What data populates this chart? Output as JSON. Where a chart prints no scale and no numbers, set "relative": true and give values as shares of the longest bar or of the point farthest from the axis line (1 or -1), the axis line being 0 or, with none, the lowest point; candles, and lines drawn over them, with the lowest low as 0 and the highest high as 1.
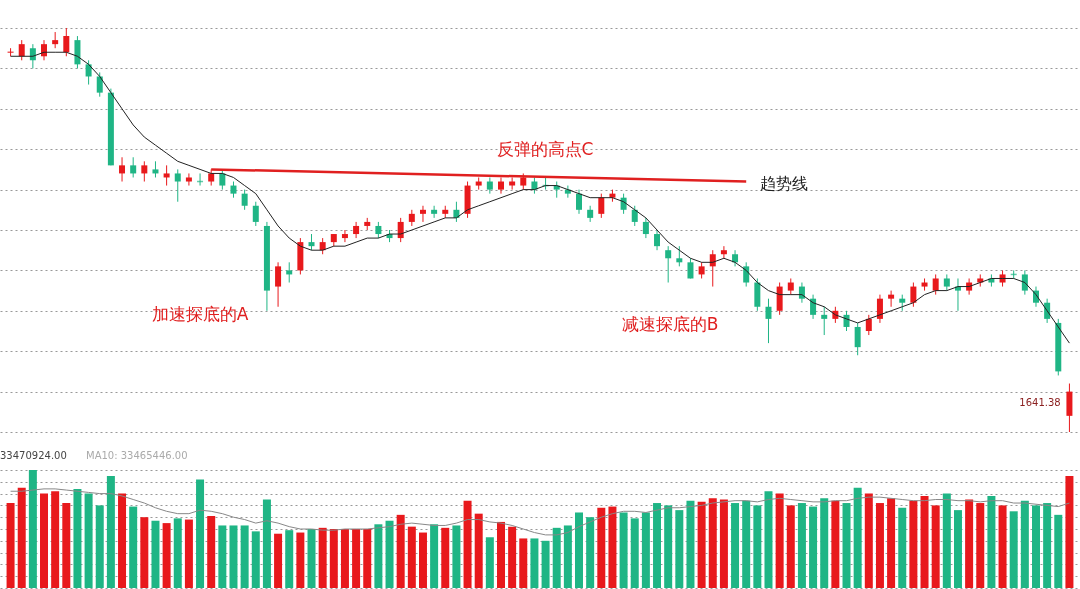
{
  "chart_data": [
    {
      "type": "candlestick",
      "relative": true,
      "grid": "y",
      "categories": [
        null,
        null,
        null,
        null,
        null,
        null,
        null,
        null,
        null,
        null,
        null,
        null,
        null,
        null,
        null,
        null,
        null,
        null,
        null,
        null,
        null,
        null,
        null,
        null,
        null,
        null,
        null,
        null,
        null,
        null,
        null,
        null,
        null,
        null,
        null,
        null,
        null,
        null,
        null,
        null,
        null,
        null,
        null,
        null,
        null,
        null,
        null,
        null,
        null,
        null,
        null,
        null,
        null,
        null,
        null,
        null,
        null,
        null,
        null,
        null,
        null,
        null,
        null,
        null,
        null,
        null,
        null,
        null,
        null,
        null,
        null,
        null,
        null,
        null,
        null,
        null,
        null,
        null,
        null,
        null,
        null,
        null,
        null,
        null,
        null,
        null,
        null,
        null,
        null,
        null,
        null,
        null,
        null,
        null,
        null,
        null
      ],
      "ohlc": [
        [
          0.94,
          0.95,
          0.93,
          0.94
        ],
        [
          0.93,
          0.97,
          0.92,
          0.96
        ],
        [
          0.95,
          0.96,
          0.9,
          0.92
        ],
        [
          0.93,
          0.97,
          0.92,
          0.96
        ],
        [
          0.96,
          0.99,
          0.95,
          0.97
        ],
        [
          0.94,
          1.0,
          0.93,
          0.98
        ],
        [
          0.97,
          0.98,
          0.9,
          0.91
        ],
        [
          0.91,
          0.92,
          0.86,
          0.88
        ],
        [
          0.88,
          0.89,
          0.83,
          0.84
        ],
        [
          0.84,
          0.85,
          0.66,
          0.66
        ],
        [
          0.64,
          0.68,
          0.62,
          0.66
        ],
        [
          0.66,
          0.68,
          0.63,
          0.64
        ],
        [
          0.64,
          0.67,
          0.62,
          0.66
        ],
        [
          0.65,
          0.67,
          0.63,
          0.64
        ],
        [
          0.63,
          0.66,
          0.61,
          0.64
        ],
        [
          0.64,
          0.65,
          0.57,
          0.62
        ],
        [
          0.62,
          0.64,
          0.61,
          0.63
        ],
        [
          0.62,
          0.64,
          0.61,
          0.62
        ],
        [
          0.62,
          0.65,
          0.61,
          0.64
        ],
        [
          0.64,
          0.65,
          0.6,
          0.61
        ],
        [
          0.61,
          0.62,
          0.58,
          0.59
        ],
        [
          0.59,
          0.6,
          0.55,
          0.56
        ],
        [
          0.56,
          0.57,
          0.51,
          0.52
        ],
        [
          0.51,
          0.52,
          0.3,
          0.35
        ],
        [
          0.36,
          0.42,
          0.31,
          0.41
        ],
        [
          0.4,
          0.42,
          0.37,
          0.39
        ],
        [
          0.4,
          0.48,
          0.39,
          0.47
        ],
        [
          0.47,
          0.49,
          0.45,
          0.46
        ],
        [
          0.45,
          0.48,
          0.44,
          0.47
        ],
        [
          0.47,
          0.49,
          0.46,
          0.49
        ],
        [
          0.48,
          0.5,
          0.47,
          0.49
        ],
        [
          0.49,
          0.52,
          0.48,
          0.51
        ],
        [
          0.51,
          0.53,
          0.5,
          0.52
        ],
        [
          0.51,
          0.52,
          0.48,
          0.49
        ],
        [
          0.49,
          0.5,
          0.47,
          0.48
        ],
        [
          0.48,
          0.53,
          0.47,
          0.52
        ],
        [
          0.52,
          0.55,
          0.51,
          0.54
        ],
        [
          0.54,
          0.56,
          0.52,
          0.55
        ],
        [
          0.55,
          0.56,
          0.53,
          0.54
        ],
        [
          0.54,
          0.56,
          0.53,
          0.55
        ],
        [
          0.55,
          0.57,
          0.52,
          0.53
        ],
        [
          0.54,
          0.62,
          0.53,
          0.61
        ],
        [
          0.61,
          0.63,
          0.6,
          0.62
        ],
        [
          0.62,
          0.63,
          0.59,
          0.6
        ],
        [
          0.6,
          0.63,
          0.59,
          0.62
        ],
        [
          0.61,
          0.63,
          0.6,
          0.62
        ],
        [
          0.61,
          0.64,
          0.6,
          0.63
        ],
        [
          0.62,
          0.63,
          0.59,
          0.6
        ],
        [
          0.61,
          0.63,
          0.6,
          0.61
        ],
        [
          0.61,
          0.62,
          0.58,
          0.6
        ],
        [
          0.6,
          0.61,
          0.58,
          0.59
        ],
        [
          0.59,
          0.6,
          0.54,
          0.55
        ],
        [
          0.55,
          0.56,
          0.52,
          0.53
        ],
        [
          0.54,
          0.59,
          0.53,
          0.58
        ],
        [
          0.58,
          0.6,
          0.57,
          0.59
        ],
        [
          0.58,
          0.59,
          0.54,
          0.55
        ],
        [
          0.55,
          0.56,
          0.51,
          0.52
        ],
        [
          0.52,
          0.53,
          0.48,
          0.49
        ],
        [
          0.49,
          0.5,
          0.45,
          0.46
        ],
        [
          0.45,
          0.46,
          0.37,
          0.43
        ],
        [
          0.43,
          0.46,
          0.41,
          0.42
        ],
        [
          0.42,
          0.43,
          0.38,
          0.38
        ],
        [
          0.39,
          0.42,
          0.38,
          0.41
        ],
        [
          0.41,
          0.45,
          0.36,
          0.44
        ],
        [
          0.44,
          0.46,
          0.43,
          0.45
        ],
        [
          0.44,
          0.45,
          0.41,
          0.42
        ],
        [
          0.41,
          0.42,
          0.36,
          0.37
        ],
        [
          0.37,
          0.38,
          0.3,
          0.31
        ],
        [
          0.31,
          0.33,
          0.22,
          0.28
        ],
        [
          0.3,
          0.37,
          0.29,
          0.36
        ],
        [
          0.35,
          0.38,
          0.34,
          0.37
        ],
        [
          0.36,
          0.37,
          0.32,
          0.33
        ],
        [
          0.33,
          0.34,
          0.28,
          0.29
        ],
        [
          0.29,
          0.31,
          0.24,
          0.28
        ],
        [
          0.28,
          0.31,
          0.27,
          0.3
        ],
        [
          0.29,
          0.3,
          0.25,
          0.26
        ],
        [
          0.26,
          0.27,
          0.19,
          0.21
        ],
        [
          0.25,
          0.29,
          0.24,
          0.28
        ],
        [
          0.28,
          0.34,
          0.27,
          0.33
        ],
        [
          0.33,
          0.35,
          0.31,
          0.34
        ],
        [
          0.33,
          0.34,
          0.3,
          0.32
        ],
        [
          0.32,
          0.37,
          0.31,
          0.36
        ],
        [
          0.36,
          0.38,
          0.35,
          0.37
        ],
        [
          0.35,
          0.39,
          0.34,
          0.38
        ],
        [
          0.38,
          0.39,
          0.35,
          0.36
        ],
        [
          0.36,
          0.38,
          0.3,
          0.35
        ],
        [
          0.35,
          0.38,
          0.34,
          0.37
        ],
        [
          0.37,
          0.39,
          0.36,
          0.38
        ],
        [
          0.38,
          0.39,
          0.36,
          0.37
        ],
        [
          0.37,
          0.4,
          0.36,
          0.39
        ],
        [
          0.39,
          0.4,
          0.38,
          0.39
        ],
        [
          0.39,
          0.4,
          0.34,
          0.35
        ],
        [
          0.35,
          0.36,
          0.31,
          0.32
        ],
        [
          0.32,
          0.33,
          0.27,
          0.28
        ],
        [
          0.27,
          0.28,
          0.14,
          0.15
        ],
        [
          0.04,
          0.12,
          0.0,
          0.1
        ]
      ],
      "colors": [
        "#e8191c",
        "#e8191c",
        "#1fb585",
        "#e8191c",
        "#e8191c",
        "#e8191c",
        "#1fb585",
        "#1fb585",
        "#1fb585",
        "#1fb585",
        "#e8191c",
        "#1fb585",
        "#e8191c",
        "#1fb585",
        "#e8191c",
        "#1fb585",
        "#e8191c",
        "#1fb585",
        "#e8191c",
        "#1fb585",
        "#1fb585",
        "#1fb585",
        "#1fb585",
        "#1fb585",
        "#e8191c",
        "#1fb585",
        "#e8191c",
        "#1fb585",
        "#e8191c",
        "#e8191c",
        "#e8191c",
        "#e8191c",
        "#e8191c",
        "#1fb585",
        "#1fb585",
        "#e8191c",
        "#e8191c",
        "#e8191c",
        "#1fb585",
        "#e8191c",
        "#1fb585",
        "#e8191c",
        "#e8191c",
        "#1fb585",
        "#e8191c",
        "#e8191c",
        "#e8191c",
        "#1fb585",
        "#1fb585",
        "#1fb585",
        "#1fb585",
        "#1fb585",
        "#1fb585",
        "#e8191c",
        "#e8191c",
        "#1fb585",
        "#1fb585",
        "#1fb585",
        "#1fb585",
        "#1fb585",
        "#1fb585",
        "#1fb585",
        "#e8191c",
        "#e8191c",
        "#e8191c",
        "#1fb585",
        "#1fb585",
        "#1fb585",
        "#1fb585",
        "#e8191c",
        "#e8191c",
        "#1fb585",
        "#1fb585",
        "#1fb585",
        "#e8191c",
        "#1fb585",
        "#1fb585",
        "#e8191c",
        "#e8191c",
        "#e8191c",
        "#1fb585",
        "#e8191c",
        "#e8191c",
        "#e8191c",
        "#1fb585",
        "#1fb585",
        "#e8191c",
        "#e8191c",
        "#1fb585",
        "#e8191c",
        "#1fb585",
        "#1fb585",
        "#1fb585",
        "#1fb585",
        "#1fb585",
        "#e8191c"
      ],
      "series": [
        {
          "type": "line",
          "color": "#222222",
          "values": [
            0.93,
            0.93,
            0.93,
            0.94,
            0.94,
            0.94,
            0.93,
            0.91,
            0.88,
            0.84,
            0.8,
            0.76,
            0.73,
            0.71,
            0.69,
            0.67,
            0.66,
            0.65,
            0.64,
            0.64,
            0.63,
            0.61,
            0.59,
            0.55,
            0.51,
            0.48,
            0.46,
            0.45,
            0.45,
            0.46,
            0.46,
            0.47,
            0.48,
            0.48,
            0.49,
            0.49,
            0.5,
            0.51,
            0.52,
            0.53,
            0.53,
            0.55,
            0.56,
            0.57,
            0.58,
            0.59,
            0.6,
            0.6,
            0.61,
            0.61,
            0.6,
            0.59,
            0.58,
            0.58,
            0.58,
            0.57,
            0.55,
            0.53,
            0.5,
            0.47,
            0.45,
            0.43,
            0.42,
            0.42,
            0.43,
            0.42,
            0.4,
            0.37,
            0.35,
            0.34,
            0.34,
            0.34,
            0.32,
            0.31,
            0.29,
            0.28,
            0.27,
            0.28,
            0.29,
            0.3,
            0.31,
            0.32,
            0.34,
            0.35,
            0.35,
            0.36,
            0.36,
            0.37,
            0.38,
            0.38,
            0.38,
            0.37,
            0.34,
            0.3,
            0.26,
            0.22
          ]
        },
        {
          "type": "line",
          "color": "#e02020",
          "values": [
            null,
            null,
            null,
            null,
            null,
            null,
            null,
            null,
            null,
            null,
            null,
            null,
            null,
            null,
            null,
            null,
            null,
            null,
            0.65,
            null,
            null,
            null,
            null,
            null,
            null,
            null,
            null,
            null,
            null,
            null,
            null,
            null,
            null,
            null,
            null,
            null,
            null,
            null,
            null,
            null,
            null,
            null,
            null,
            null,
            null,
            null,
            null,
            null,
            null,
            null,
            null,
            null,
            null,
            null,
            null,
            null,
            null,
            null,
            null,
            null,
            null,
            null,
            null,
            null,
            null,
            null,
            0.62,
            null,
            null,
            null,
            null,
            null,
            null,
            null,
            null,
            null,
            null,
            null,
            null,
            null,
            null,
            null,
            null,
            null,
            null,
            null,
            null,
            null,
            null,
            null,
            null,
            null,
            null,
            null,
            null,
            null
          ]
        }
      ],
      "annotations": [
        "反弹的高点C",
        "趋势线",
        "加速探底的A",
        "减速探底的B",
        "1641.38"
      ]
    },
    {
      "type": "bar",
      "relative": true,
      "grid": "y",
      "categories": [
        null,
        null,
        null,
        null,
        null,
        null,
        null,
        null,
        null,
        null,
        null,
        null,
        null,
        null,
        null,
        null,
        null,
        null,
        null,
        null,
        null,
        null,
        null,
        null,
        null,
        null,
        null,
        null,
        null,
        null,
        null,
        null,
        null,
        null,
        null,
        null,
        null,
        null,
        null,
        null,
        null,
        null,
        null,
        null,
        null,
        null,
        null,
        null,
        null,
        null,
        null,
        null,
        null,
        null,
        null,
        null,
        null,
        null,
        null,
        null,
        null,
        null,
        null,
        null,
        null,
        null,
        null,
        null,
        null,
        null,
        null,
        null,
        null,
        null,
        null,
        null,
        null,
        null,
        null,
        null,
        null,
        null,
        null,
        null,
        null,
        null,
        null,
        null,
        null,
        null,
        null,
        null,
        null,
        null,
        null,
        null
      ],
      "values": [
        0.72,
        0.85,
        1.0,
        0.8,
        0.82,
        0.72,
        0.84,
        0.8,
        0.7,
        0.95,
        0.8,
        0.69,
        0.6,
        0.57,
        0.55,
        0.59,
        0.58,
        0.92,
        0.61,
        0.53,
        0.53,
        0.53,
        0.48,
        0.75,
        0.46,
        0.49,
        0.47,
        0.5,
        0.51,
        0.5,
        0.5,
        0.5,
        0.5,
        0.54,
        0.57,
        0.62,
        0.52,
        0.47,
        0.54,
        0.51,
        0.53,
        0.74,
        0.63,
        0.43,
        0.56,
        0.52,
        0.42,
        0.42,
        0.4,
        0.51,
        0.53,
        0.64,
        0.6,
        0.68,
        0.69,
        0.64,
        0.59,
        0.64,
        0.72,
        0.7,
        0.66,
        0.74,
        0.73,
        0.76,
        0.75,
        0.72,
        0.74,
        0.7,
        0.82,
        0.8,
        0.7,
        0.72,
        0.69,
        0.76,
        0.74,
        0.72,
        0.85,
        0.8,
        0.72,
        0.76,
        0.68,
        0.74,
        0.78,
        0.7,
        0.8,
        0.66,
        0.75,
        0.72,
        0.78,
        0.7,
        0.65,
        0.74,
        0.7,
        0.72,
        0.62,
        0.95
      ],
      "colors": [
        "#e8191c",
        "#e8191c",
        "#1fb585",
        "#e8191c",
        "#e8191c",
        "#e8191c",
        "#1fb585",
        "#1fb585",
        "#1fb585",
        "#1fb585",
        "#e8191c",
        "#1fb585",
        "#e8191c",
        "#1fb585",
        "#e8191c",
        "#1fb585",
        "#e8191c",
        "#1fb585",
        "#e8191c",
        "#1fb585",
        "#1fb585",
        "#1fb585",
        "#1fb585",
        "#1fb585",
        "#e8191c",
        "#1fb585",
        "#e8191c",
        "#1fb585",
        "#e8191c",
        "#e8191c",
        "#e8191c",
        "#e8191c",
        "#e8191c",
        "#1fb585",
        "#1fb585",
        "#e8191c",
        "#e8191c",
        "#e8191c",
        "#1fb585",
        "#e8191c",
        "#1fb585",
        "#e8191c",
        "#e8191c",
        "#1fb585",
        "#e8191c",
        "#e8191c",
        "#e8191c",
        "#1fb585",
        "#1fb585",
        "#1fb585",
        "#1fb585",
        "#1fb585",
        "#1fb585",
        "#e8191c",
        "#e8191c",
        "#1fb585",
        "#1fb585",
        "#1fb585",
        "#1fb585",
        "#1fb585",
        "#1fb585",
        "#1fb585",
        "#e8191c",
        "#e8191c",
        "#e8191c",
        "#1fb585",
        "#1fb585",
        "#1fb585",
        "#1fb585",
        "#e8191c",
        "#e8191c",
        "#1fb585",
        "#1fb585",
        "#1fb585",
        "#e8191c",
        "#1fb585",
        "#1fb585",
        "#e8191c",
        "#e8191c",
        "#e8191c",
        "#1fb585",
        "#e8191c",
        "#e8191c",
        "#e8191c",
        "#1fb585",
        "#1fb585",
        "#e8191c",
        "#e8191c",
        "#1fb585",
        "#e8191c",
        "#1fb585",
        "#1fb585",
        "#1fb585",
        "#1fb585",
        "#1fb585",
        "#e8191c"
      ],
      "series": [
        {
          "type": "line",
          "color": "#888888",
          "values": [
            0.82,
            0.82,
            0.83,
            0.84,
            0.84,
            0.83,
            0.82,
            0.81,
            0.8,
            0.8,
            0.78,
            0.75,
            0.72,
            0.68,
            0.65,
            0.63,
            0.63,
            0.66,
            0.65,
            0.63,
            0.6,
            0.58,
            0.55,
            0.57,
            0.55,
            0.52,
            0.5,
            0.5,
            0.49,
            0.49,
            0.5,
            0.5,
            0.5,
            0.51,
            0.52,
            0.54,
            0.55,
            0.54,
            0.53,
            0.53,
            0.55,
            0.58,
            0.58,
            0.56,
            0.55,
            0.53,
            0.5,
            0.47,
            0.45,
            0.45,
            0.47,
            0.52,
            0.56,
            0.6,
            0.63,
            0.65,
            0.65,
            0.64,
            0.66,
            0.68,
            0.68,
            0.69,
            0.7,
            0.72,
            0.73,
            0.74,
            0.74,
            0.73,
            0.75,
            0.76,
            0.75,
            0.74,
            0.73,
            0.73,
            0.74,
            0.74,
            0.76,
            0.77,
            0.77,
            0.76,
            0.75,
            0.74,
            0.74,
            0.75,
            0.75,
            0.74,
            0.74,
            0.73,
            0.74,
            0.74,
            0.72,
            0.72,
            0.71,
            0.7,
            0.69,
            0.72
          ]
        }
      ],
      "annotations": [
        "33470924.00",
        "MA10: 33465446.00"
      ]
    }
  ]
}
